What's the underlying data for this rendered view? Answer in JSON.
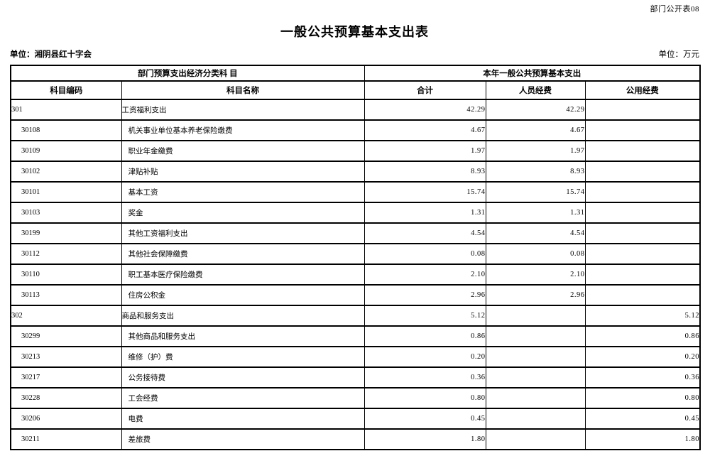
{
  "page": {
    "form_label": "部门公开表08",
    "title": "一般公共预算基本支出表",
    "unit_name": "单位：湘阴县红十字会",
    "unit_measure": "单位：万元"
  },
  "colors": {
    "text": "#000000",
    "border": "#000000",
    "background": "#ffffff"
  },
  "table": {
    "group_headers": {
      "classification": "部门预算支出经济分类科 目",
      "expenditure": "本年一般公共预算基本支出"
    },
    "columns": [
      "科目编码",
      "科目名称",
      "合计",
      "人员经费",
      "公用经费"
    ],
    "rows": [
      {
        "code": "301",
        "name": "工资福利支出",
        "total": "42.29",
        "personnel": "42.29",
        "public": "",
        "level": 0
      },
      {
        "code": "30108",
        "name": "机关事业单位基本养老保险缴费",
        "total": "4.67",
        "personnel": "4.67",
        "public": "",
        "level": 1
      },
      {
        "code": "30109",
        "name": "职业年金缴费",
        "total": "1.97",
        "personnel": "1.97",
        "public": "",
        "level": 1
      },
      {
        "code": "30102",
        "name": "津贴补贴",
        "total": "8.93",
        "personnel": "8.93",
        "public": "",
        "level": 1
      },
      {
        "code": "30101",
        "name": "基本工资",
        "total": "15.74",
        "personnel": "15.74",
        "public": "",
        "level": 1
      },
      {
        "code": "30103",
        "name": "奖金",
        "total": "1.31",
        "personnel": "1.31",
        "public": "",
        "level": 1
      },
      {
        "code": "30199",
        "name": "其他工资福利支出",
        "total": "4.54",
        "personnel": "4.54",
        "public": "",
        "level": 1
      },
      {
        "code": "30112",
        "name": "其他社会保障缴费",
        "total": "0.08",
        "personnel": "0.08",
        "public": "",
        "level": 1
      },
      {
        "code": "30110",
        "name": "职工基本医疗保险缴费",
        "total": "2.10",
        "personnel": "2.10",
        "public": "",
        "level": 1
      },
      {
        "code": "30113",
        "name": "住房公积金",
        "total": "2.96",
        "personnel": "2.96",
        "public": "",
        "level": 1
      },
      {
        "code": "302",
        "name": "商品和服务支出",
        "total": "5.12",
        "personnel": "",
        "public": "5.12",
        "level": 0
      },
      {
        "code": "30299",
        "name": "其他商品和服务支出",
        "total": "0.86",
        "personnel": "",
        "public": "0.86",
        "level": 1
      },
      {
        "code": "30213",
        "name": "维修（护）费",
        "total": "0.20",
        "personnel": "",
        "public": "0.20",
        "level": 1
      },
      {
        "code": "30217",
        "name": "公务接待费",
        "total": "0.36",
        "personnel": "",
        "public": "0.36",
        "level": 1
      },
      {
        "code": "30228",
        "name": "工会经费",
        "total": "0.80",
        "personnel": "",
        "public": "0.80",
        "level": 1
      },
      {
        "code": "30206",
        "name": "电费",
        "total": "0.45",
        "personnel": "",
        "public": "0.45",
        "level": 1
      },
      {
        "code": "30211",
        "name": "差旅费",
        "total": "1.80",
        "personnel": "",
        "public": "1.80",
        "level": 1
      }
    ]
  }
}
